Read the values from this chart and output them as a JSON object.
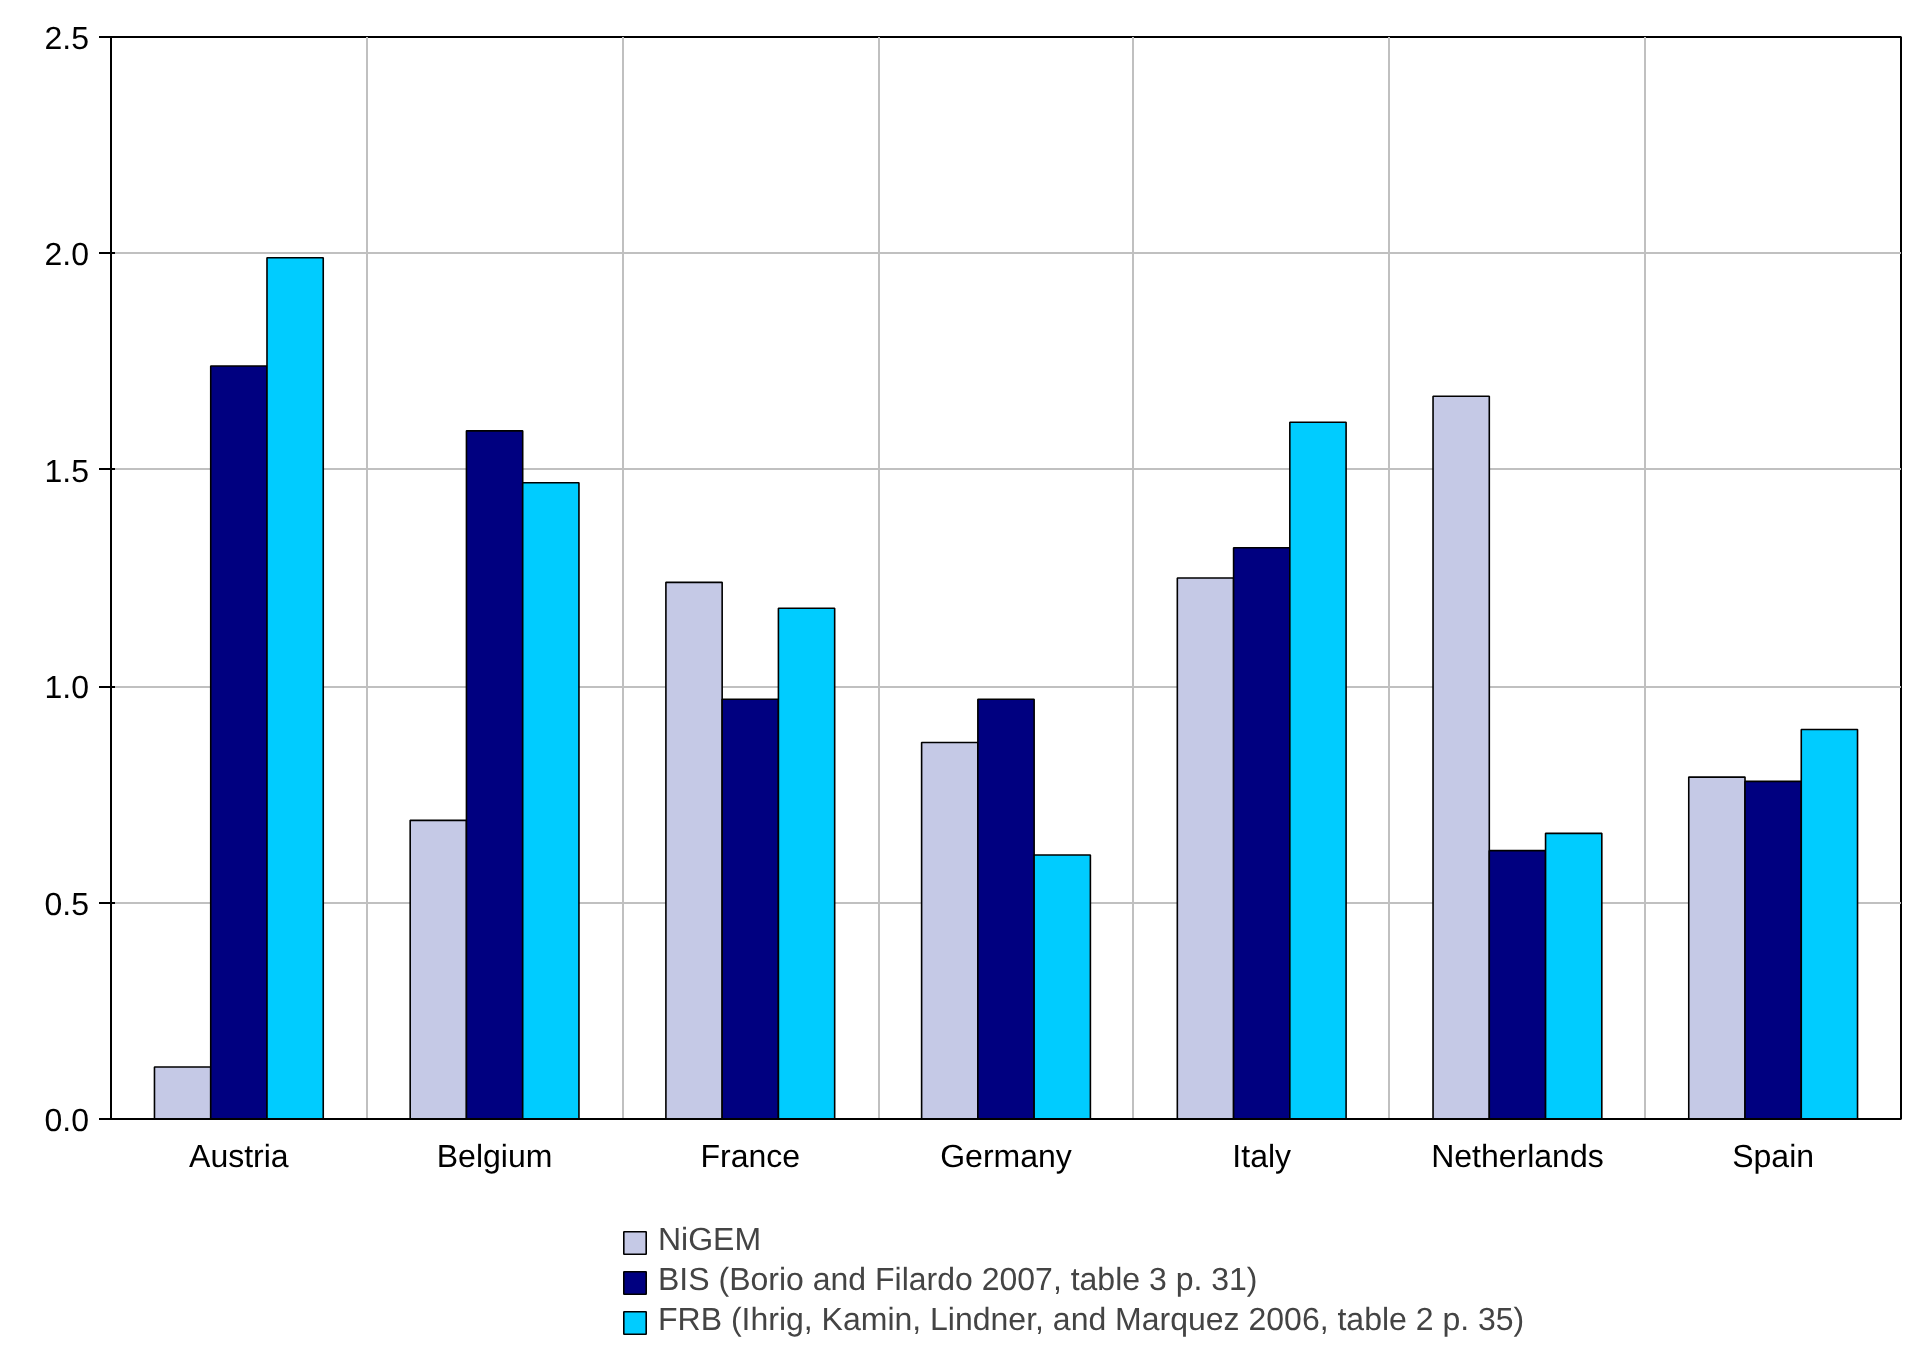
{
  "chart_data": {
    "type": "bar",
    "categories": [
      "Austria",
      "Belgium",
      "France",
      "Germany",
      "Italy",
      "Netherlands",
      "Spain"
    ],
    "series": [
      {
        "name": "NiGEM",
        "color": "#c5c9e6",
        "values": [
          0.12,
          0.69,
          1.24,
          0.87,
          1.25,
          1.67,
          0.79
        ]
      },
      {
        "name": "BIS (Borio and Filardo 2007, table 3 p. 31)",
        "color": "#000080",
        "values": [
          1.74,
          1.59,
          0.97,
          0.97,
          1.32,
          0.62,
          0.78
        ]
      },
      {
        "name": "FRB (Ihrig, Kamin, Lindner, and Marquez 2006, table 2 p. 35)",
        "color": "#00ccff",
        "values": [
          1.99,
          1.47,
          1.18,
          0.61,
          1.61,
          0.66,
          0.9
        ]
      }
    ],
    "ylim": [
      0,
      2.5
    ],
    "yticks": [
      {
        "value": 0,
        "label": "0.0"
      },
      {
        "value": 0.5,
        "label": "0.5"
      },
      {
        "value": 1,
        "label": "1.0"
      },
      {
        "value": 1.5,
        "label": "1.5"
      },
      {
        "value": 2,
        "label": "2.0"
      },
      {
        "value": 2.5,
        "label": "2.5"
      }
    ],
    "grid": true,
    "legend": "bottom"
  }
}
